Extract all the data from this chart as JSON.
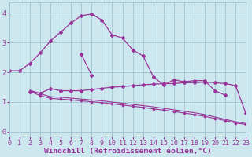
{
  "bg_color": "#cce8ee",
  "line_color": "#993399",
  "grid_color": "#99bbcc",
  "xlabel": "Windchill (Refroidissement éolien,°C)",
  "tick_fontsize": 6.0,
  "xlabel_fontsize": 6.8,
  "xlim": [
    0,
    23
  ],
  "ylim": [
    -0.15,
    4.35
  ],
  "yticks": [
    0,
    1,
    2,
    3,
    4
  ],
  "xticks": [
    0,
    1,
    2,
    3,
    4,
    5,
    6,
    7,
    8,
    9,
    10,
    11,
    12,
    13,
    14,
    15,
    16,
    17,
    18,
    19,
    20,
    21,
    22,
    23
  ],
  "series": [
    {
      "x": [
        0,
        1,
        2,
        3,
        4,
        5,
        6,
        7,
        8,
        9,
        10,
        11,
        12,
        13,
        14,
        15,
        16,
        17,
        18,
        19,
        20,
        21
      ],
      "y": [
        2.05,
        2.05,
        2.3,
        2.65,
        3.05,
        3.35,
        3.65,
        3.9,
        3.95,
        3.75,
        3.25,
        3.15,
        2.75,
        2.55,
        1.85,
        1.57,
        1.75,
        1.68,
        1.72,
        1.72,
        1.38,
        1.23
      ],
      "marker": "D",
      "markersize": 2.0,
      "linewidth": 0.9
    },
    {
      "x": [
        7,
        8
      ],
      "y": [
        2.6,
        1.9
      ],
      "marker": "D",
      "markersize": 2.0,
      "linewidth": 0.9
    },
    {
      "x": [
        2,
        3,
        4,
        5,
        6,
        7,
        8,
        9,
        10,
        11,
        12,
        13,
        14,
        15,
        16,
        17,
        18,
        19,
        20,
        21,
        22,
        23
      ],
      "y": [
        1.35,
        1.3,
        1.45,
        1.38,
        1.38,
        1.38,
        1.42,
        1.46,
        1.5,
        1.52,
        1.55,
        1.58,
        1.6,
        1.62,
        1.62,
        1.65,
        1.65,
        1.67,
        1.65,
        1.62,
        1.55,
        0.62
      ],
      "marker": "D",
      "markersize": 2.0,
      "linewidth": 0.9
    },
    {
      "x": [
        2,
        3,
        4,
        5,
        6,
        7,
        8,
        9,
        10,
        11,
        12,
        13,
        14,
        15,
        16,
        17,
        18,
        19,
        20,
        21,
        22,
        23
      ],
      "y": [
        1.35,
        1.22,
        1.12,
        1.1,
        1.07,
        1.04,
        1.01,
        0.98,
        0.94,
        0.9,
        0.86,
        0.82,
        0.77,
        0.73,
        0.68,
        0.63,
        0.58,
        0.52,
        0.45,
        0.38,
        0.3,
        0.25
      ],
      "marker": "D",
      "markersize": 1.5,
      "linewidth": 0.8
    },
    {
      "x": [
        2,
        3,
        4,
        5,
        6,
        7,
        8,
        9,
        10,
        11,
        12,
        13,
        14,
        15,
        16,
        17,
        18,
        19,
        20,
        21,
        22,
        23
      ],
      "y": [
        1.4,
        1.28,
        1.18,
        1.16,
        1.13,
        1.1,
        1.07,
        1.04,
        1.0,
        0.96,
        0.92,
        0.88,
        0.84,
        0.79,
        0.74,
        0.69,
        0.64,
        0.58,
        0.5,
        0.42,
        0.34,
        0.28
      ],
      "marker": null,
      "markersize": 0,
      "linewidth": 0.8
    }
  ]
}
